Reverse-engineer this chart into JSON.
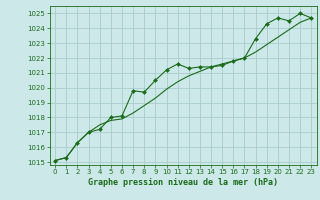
{
  "title": "Graphe pression niveau de la mer (hPa)",
  "background_color": "#cce8e8",
  "grid_color": "#aacccc",
  "line_color": "#1a6b1a",
  "marker_color": "#1a6b1a",
  "xlim": [
    -0.5,
    23.5
  ],
  "ylim": [
    1014.8,
    1025.5
  ],
  "xticks": [
    0,
    1,
    2,
    3,
    4,
    5,
    6,
    7,
    8,
    9,
    10,
    11,
    12,
    13,
    14,
    15,
    16,
    17,
    18,
    19,
    20,
    21,
    22,
    23
  ],
  "yticks": [
    1015,
    1016,
    1017,
    1018,
    1019,
    1020,
    1021,
    1022,
    1023,
    1024,
    1025
  ],
  "series1_x": [
    0,
    1,
    2,
    3,
    4,
    5,
    6,
    7,
    8,
    9,
    10,
    11,
    12,
    13,
    14,
    15,
    16,
    17,
    18,
    19,
    20,
    21,
    22,
    23
  ],
  "series1_y": [
    1015.1,
    1015.3,
    1016.3,
    1017.0,
    1017.2,
    1018.0,
    1018.1,
    1019.8,
    1019.7,
    1020.5,
    1021.2,
    1021.6,
    1021.3,
    1021.4,
    1021.4,
    1021.5,
    1021.8,
    1022.0,
    1023.3,
    1024.3,
    1024.7,
    1024.5,
    1025.0,
    1024.7
  ],
  "series2_x": [
    0,
    1,
    2,
    3,
    4,
    5,
    6,
    7,
    8,
    9,
    10,
    11,
    12,
    13,
    14,
    15,
    16,
    17,
    18,
    19,
    20,
    21,
    22,
    23
  ],
  "series2_y": [
    1015.1,
    1015.3,
    1016.3,
    1017.0,
    1017.5,
    1017.8,
    1017.9,
    1018.3,
    1018.8,
    1019.3,
    1019.9,
    1020.4,
    1020.8,
    1021.1,
    1021.4,
    1021.6,
    1021.8,
    1022.0,
    1022.4,
    1022.9,
    1023.4,
    1023.9,
    1024.4,
    1024.7
  ],
  "tick_fontsize": 5,
  "label_fontsize": 6
}
